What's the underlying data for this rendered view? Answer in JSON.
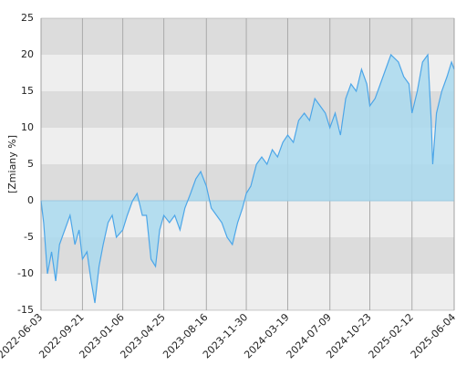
{
  "chart_data": {
    "type": "area",
    "y_label": "[Zmiany %]",
    "color": "#4da6e8",
    "fill": "#a9d9ef",
    "x": [
      "2022-06-03",
      "2022-06-10",
      "2022-06-20",
      "2022-07-01",
      "2022-07-12",
      "2022-07-22",
      "2022-08-05",
      "2022-08-19",
      "2022-09-01",
      "2022-09-12",
      "2022-09-21",
      "2022-10-03",
      "2022-10-14",
      "2022-10-24",
      "2022-11-04",
      "2022-11-15",
      "2022-11-28",
      "2022-12-09",
      "2022-12-20",
      "2023-01-06",
      "2023-01-18",
      "2023-02-01",
      "2023-02-13",
      "2023-02-27",
      "2023-03-10",
      "2023-03-22",
      "2023-04-03",
      "2023-04-14",
      "2023-04-25",
      "2023-05-10",
      "2023-05-24",
      "2023-06-07",
      "2023-06-20",
      "2023-07-05",
      "2023-07-19",
      "2023-08-01",
      "2023-08-16",
      "2023-08-29",
      "2023-09-12",
      "2023-09-26",
      "2023-10-10",
      "2023-10-24",
      "2023-11-07",
      "2023-11-20",
      "2023-11-30",
      "2023-12-12",
      "2023-12-27",
      "2024-01-10",
      "2024-01-24",
      "2024-02-07",
      "2024-02-21",
      "2024-03-06",
      "2024-03-19",
      "2024-04-03",
      "2024-04-17",
      "2024-05-02",
      "2024-05-16",
      "2024-05-30",
      "2024-06-13",
      "2024-06-27",
      "2024-07-09",
      "2024-07-23",
      "2024-08-06",
      "2024-08-20",
      "2024-09-03",
      "2024-09-17",
      "2024-10-01",
      "2024-10-15",
      "2024-10-23",
      "2024-11-06",
      "2024-11-20",
      "2024-12-04",
      "2024-12-18",
      "2025-01-07",
      "2025-01-21",
      "2025-02-04",
      "2025-02-12",
      "2025-02-26",
      "2025-03-12",
      "2025-03-26",
      "2025-04-04",
      "2025-04-08",
      "2025-04-18",
      "2025-05-02",
      "2025-05-16",
      "2025-05-28",
      "2025-06-04"
    ],
    "values": [
      0,
      -3,
      -10,
      -7,
      -11,
      -6,
      -4,
      -2,
      -6,
      -4,
      -8,
      -7,
      -11,
      -14,
      -9,
      -6,
      -3,
      -2,
      -5,
      -4,
      -2,
      0,
      1,
      -2,
      -2,
      -8,
      -9,
      -4,
      -2,
      -3,
      -2,
      -4,
      -1,
      1,
      3,
      4,
      2,
      -1,
      -2,
      -3,
      -5,
      -6,
      -3,
      -1,
      1,
      2,
      5,
      6,
      5,
      7,
      6,
      8,
      9,
      8,
      11,
      12,
      11,
      14,
      13,
      12,
      10,
      12,
      9,
      14,
      16,
      15,
      18,
      16,
      13,
      14,
      16,
      18,
      20,
      19,
      17,
      16,
      12,
      15,
      19,
      20,
      11,
      5,
      12,
      15,
      17,
      19,
      18
    ],
    "xlim": [
      "2022-06-03",
      "2025-06-04"
    ],
    "xticks": [
      "2022-06-03",
      "2022-09-21",
      "2023-01-06",
      "2023-04-25",
      "2023-08-16",
      "2023-11-30",
      "2024-03-19",
      "2024-07-09",
      "2024-10-23",
      "2025-02-12",
      "2025-06-04"
    ],
    "ylim": [
      -15,
      25
    ],
    "yticks": [
      -15,
      -10,
      -5,
      0,
      5,
      10,
      15,
      20,
      25
    ],
    "grid": true
  }
}
